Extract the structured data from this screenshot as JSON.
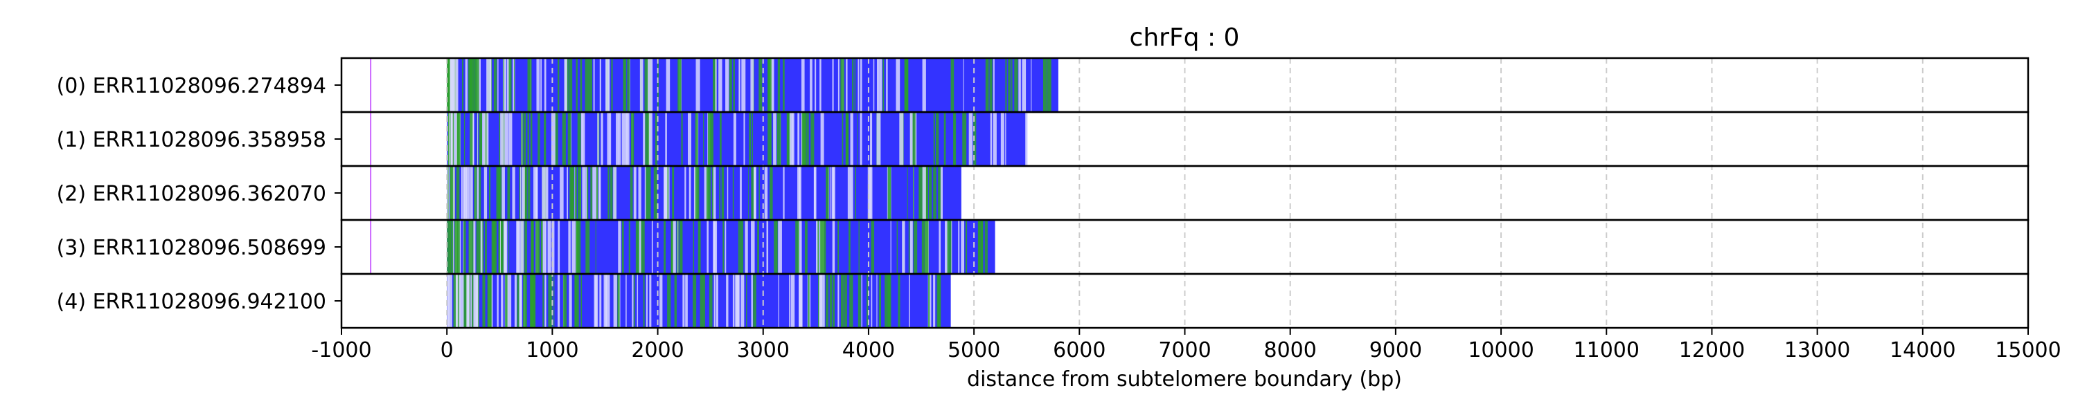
{
  "chart_data": {
    "type": "bar",
    "title": "chrFq : 0",
    "xlabel": "distance from subtelomere boundary (bp)",
    "ylabel": "",
    "xlim": [
      -1000,
      15000
    ],
    "xticks": [
      -1000,
      0,
      1000,
      2000,
      3000,
      4000,
      5000,
      6000,
      7000,
      8000,
      9000,
      10000,
      11000,
      12000,
      13000,
      14000,
      15000
    ],
    "grid": "vertical dashed",
    "reads": [
      {
        "label": "(0) ERR11028096.274894",
        "start": 0,
        "end": 5800,
        "marker": -730
      },
      {
        "label": "(1) ERR11028096.358958",
        "start": 0,
        "end": 5500,
        "marker": -730
      },
      {
        "label": "(2) ERR11028096.362070",
        "start": 0,
        "end": 4880,
        "marker": -730
      },
      {
        "label": "(3) ERR11028096.508699",
        "start": 0,
        "end": 5200,
        "marker": -730
      },
      {
        "label": "(4) ERR11028096.942100",
        "start": 0,
        "end": 4780,
        "marker": null
      }
    ],
    "colors": {
      "fill": "#3333ff",
      "green": "#2ca02c",
      "light": "#d9d9ff",
      "marker": "#cc66ff",
      "grid": "#cccccc"
    }
  }
}
